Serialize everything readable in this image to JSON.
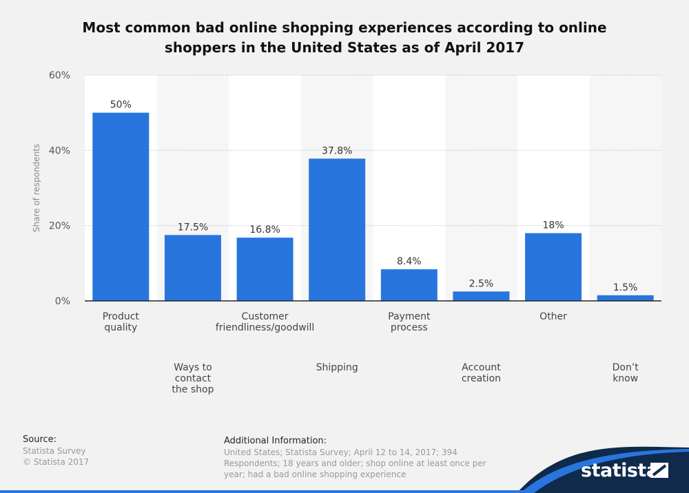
{
  "title": {
    "line1": "Most common bad online shopping experiences according to online",
    "line2": "shoppers in the United States as of April 2017"
  },
  "chart_data": {
    "type": "bar",
    "title": "Most common bad online shopping experiences according to online shoppers in the United States as of April 2017",
    "ylabel": "Share of respondents",
    "xlabel": "",
    "ylim": [
      0,
      60
    ],
    "yticks": [
      "0%",
      "20%",
      "40%",
      "60%"
    ],
    "grid": true,
    "categories": [
      [
        "Product",
        "quality"
      ],
      [
        "Ways to",
        "contact",
        "the shop"
      ],
      [
        "Customer",
        "friendliness/goodwill"
      ],
      [
        "Shipping"
      ],
      [
        "Payment",
        "process"
      ],
      [
        "Account",
        "creation"
      ],
      [
        "Other"
      ],
      [
        "Don’t",
        "know"
      ]
    ],
    "values": [
      50,
      17.5,
      16.8,
      37.8,
      8.4,
      2.5,
      18,
      1.5
    ],
    "value_labels": [
      "50%",
      "17.5%",
      "16.8%",
      "37.8%",
      "8.4%",
      "2.5%",
      "18%",
      "1.5%"
    ],
    "bar_color": "#2876dd"
  },
  "footer": {
    "source_heading": "Source:",
    "source_lines": [
      "Statista Survey",
      "© Statista 2017"
    ],
    "info_heading": "Additional Information:",
    "info_text": "United States; Statista Survey; April 12 to 14, 2017; 394 Respondents; 18 years and older; shop online at least once per year; had a bad online shopping experience"
  },
  "brand": {
    "name": "statista",
    "color": "#0f2a4a",
    "accent": "#2876dd"
  }
}
